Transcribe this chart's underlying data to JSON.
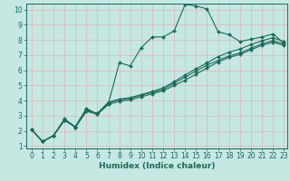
{
  "xlabel": "Humidex (Indice chaleur)",
  "ylabel": "",
  "xlim": [
    -0.5,
    23.3
  ],
  "ylim": [
    0.85,
    10.4
  ],
  "xticks": [
    0,
    1,
    2,
    3,
    4,
    5,
    6,
    7,
    8,
    9,
    10,
    11,
    12,
    13,
    14,
    15,
    16,
    17,
    18,
    19,
    20,
    21,
    22,
    23
  ],
  "yticks": [
    1,
    2,
    3,
    4,
    5,
    6,
    7,
    8,
    9,
    10
  ],
  "bg_color": "#c5e8e2",
  "grid_color": "#ddbcbc",
  "line_color": "#1a6b5a",
  "line1_x": [
    0,
    1,
    2,
    3,
    4,
    5,
    6,
    7,
    8,
    9,
    10,
    11,
    12,
    13,
    14,
    15,
    16,
    17,
    18,
    19,
    20,
    21,
    22,
    23
  ],
  "line1_y": [
    2.1,
    1.3,
    1.7,
    2.7,
    2.3,
    3.5,
    3.1,
    3.8,
    6.5,
    6.3,
    7.5,
    8.2,
    8.2,
    8.6,
    10.35,
    10.25,
    10.05,
    8.55,
    8.35,
    7.9,
    8.05,
    8.2,
    8.4,
    7.8
  ],
  "line2_x": [
    0,
    1,
    2,
    3,
    4,
    5,
    6,
    7,
    8,
    9,
    10,
    11,
    12,
    13,
    14,
    15,
    16,
    17,
    18,
    19,
    20,
    21,
    22,
    23
  ],
  "line2_y": [
    2.1,
    1.3,
    1.7,
    2.8,
    2.25,
    3.35,
    3.15,
    3.85,
    4.05,
    4.15,
    4.35,
    4.55,
    4.75,
    5.15,
    5.55,
    5.95,
    6.35,
    6.65,
    6.95,
    7.15,
    7.45,
    7.75,
    7.95,
    7.75
  ],
  "line3_x": [
    0,
    1,
    2,
    3,
    4,
    5,
    6,
    7,
    8,
    9,
    10,
    11,
    12,
    13,
    14,
    15,
    16,
    17,
    18,
    19,
    20,
    21,
    22,
    23
  ],
  "line3_y": [
    2.1,
    1.3,
    1.7,
    2.7,
    2.25,
    3.3,
    3.1,
    3.75,
    3.95,
    4.05,
    4.25,
    4.45,
    4.65,
    5.0,
    5.35,
    5.75,
    6.15,
    6.55,
    6.85,
    7.05,
    7.35,
    7.65,
    7.85,
    7.65
  ],
  "line4_x": [
    0,
    1,
    2,
    3,
    4,
    5,
    6,
    7,
    8,
    9,
    10,
    11,
    12,
    13,
    14,
    15,
    16,
    17,
    18,
    19,
    20,
    21,
    22,
    23
  ],
  "line4_y": [
    2.1,
    1.3,
    1.7,
    2.75,
    2.25,
    3.4,
    3.15,
    3.9,
    4.1,
    4.2,
    4.4,
    4.6,
    4.85,
    5.25,
    5.7,
    6.1,
    6.5,
    6.9,
    7.2,
    7.4,
    7.7,
    7.95,
    8.15,
    7.9
  ],
  "tick_fontsize": 5.5,
  "xlabel_fontsize": 6.5
}
